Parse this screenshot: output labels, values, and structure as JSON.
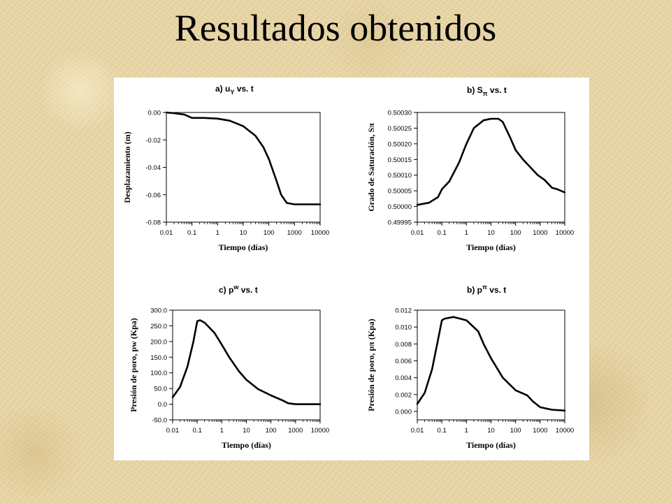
{
  "slide": {
    "title": "Resultados obtenidos"
  },
  "chart_data": [
    {
      "type": "line",
      "title": "a) uY vs. t",
      "xlabel": "Tiempo (días)",
      "ylabel": "Desplazamiento (m)",
      "xscale": "log",
      "xlim": [
        0.01,
        10000
      ],
      "ylim": [
        -0.08,
        0.0
      ],
      "xticks": [
        "0.01",
        "0.1",
        "1",
        "10",
        "100",
        "1000",
        "10000"
      ],
      "yticks": [
        "0.00",
        "-0.02",
        "-0.04",
        "-0.06",
        "-0.08"
      ],
      "series": [
        {
          "x": [
            0.01,
            0.02,
            0.05,
            0.1,
            0.3,
            1,
            3,
            10,
            30,
            60,
            100,
            200,
            300,
            500,
            1000,
            3000,
            10000
          ],
          "y": [
            0.0,
            -0.0005,
            -0.0015,
            -0.004,
            -0.004,
            -0.0045,
            -0.006,
            -0.01,
            -0.017,
            -0.025,
            -0.034,
            -0.05,
            -0.06,
            -0.066,
            -0.067,
            -0.067,
            -0.067
          ]
        }
      ]
    },
    {
      "type": "line",
      "title": "b) Sπ vs. t",
      "xlabel": "Tiempo (días)",
      "ylabel": "Grado de Saturación, Sπ",
      "xscale": "log",
      "xlim": [
        0.01,
        10000
      ],
      "ylim": [
        0.49995,
        0.5003
      ],
      "xticks": [
        "0.01",
        "0.1",
        "1",
        "10",
        "100",
        "1000",
        "10000"
      ],
      "yticks": [
        "0.50030",
        "0.50025",
        "0.50020",
        "0.50015",
        "0.50010",
        "0.50005",
        "0.50000",
        "0.49995"
      ],
      "series": [
        {
          "x": [
            0.01,
            0.03,
            0.07,
            0.1,
            0.2,
            0.5,
            1,
            2,
            5,
            10,
            20,
            30,
            60,
            100,
            200,
            400,
            800,
            1500,
            3000,
            5000,
            10000
          ],
          "y": [
            0.500005,
            0.500012,
            0.50003,
            0.500055,
            0.50008,
            0.50014,
            0.5002,
            0.50025,
            0.500275,
            0.50028,
            0.50028,
            0.50027,
            0.50022,
            0.50018,
            0.50015,
            0.500125,
            0.5001,
            0.500085,
            0.50006,
            0.500055,
            0.500045
          ]
        }
      ]
    },
    {
      "type": "line",
      "title": "c) pw vs. t",
      "xlabel": "Tiempo (días)",
      "ylabel": "Presión de poro, pw (Kpa)",
      "xscale": "log",
      "xlim": [
        0.01,
        10000
      ],
      "ylim": [
        -50,
        300
      ],
      "xticks": [
        "0.01",
        "0.1",
        "1",
        "10",
        "100",
        "1000",
        "10000"
      ],
      "yticks": [
        "300.0",
        "250.0",
        "200.0",
        "150.0",
        "100.0",
        "50.0",
        "0.0",
        "-50.0"
      ],
      "series": [
        {
          "x": [
            0.01,
            0.02,
            0.04,
            0.07,
            0.1,
            0.13,
            0.2,
            0.5,
            1,
            2,
            5,
            10,
            30,
            100,
            300,
            500,
            1000,
            3000,
            10000
          ],
          "y": [
            22,
            55,
            120,
            200,
            265,
            268,
            260,
            228,
            190,
            150,
            105,
            78,
            48,
            28,
            12,
            3,
            0,
            0,
            0
          ]
        }
      ]
    },
    {
      "type": "line",
      "title": "b) pπ vs. t",
      "xlabel": "Tiempo (días)",
      "ylabel": "Presión de poro, pπ (Kpa)",
      "xscale": "log",
      "xlim": [
        0.01,
        10000
      ],
      "ylim": [
        -0.001,
        0.012
      ],
      "xticks": [
        "0.01",
        "0.1",
        "1",
        "10",
        "100",
        "1000",
        "10000"
      ],
      "yticks": [
        "0.012",
        "0.010",
        "0.008",
        "0.006",
        "0.004",
        "0.002",
        "0.000"
      ],
      "series": [
        {
          "x": [
            0.01,
            0.02,
            0.04,
            0.07,
            0.1,
            0.13,
            0.3,
            1,
            3,
            5,
            10,
            30,
            100,
            300,
            500,
            1000,
            3000,
            10000
          ],
          "y": [
            0.0009,
            0.0022,
            0.005,
            0.0085,
            0.0108,
            0.011,
            0.0112,
            0.0108,
            0.0095,
            0.008,
            0.0063,
            0.004,
            0.0025,
            0.0019,
            0.0012,
            0.0005,
            0.0002,
            0.0001
          ]
        }
      ]
    }
  ],
  "panels": [
    {
      "title_prefix": "a) u",
      "title_sub": "Y",
      "title_suffix": " vs. t"
    },
    {
      "title_prefix": "b) S",
      "title_sub": "π",
      "title_suffix": " vs. t"
    },
    {
      "title_prefix": "c) p",
      "title_sup": "w",
      "title_suffix": " vs. t"
    },
    {
      "title_prefix": "b) p",
      "title_sup": "π",
      "title_suffix": " vs. t"
    }
  ]
}
